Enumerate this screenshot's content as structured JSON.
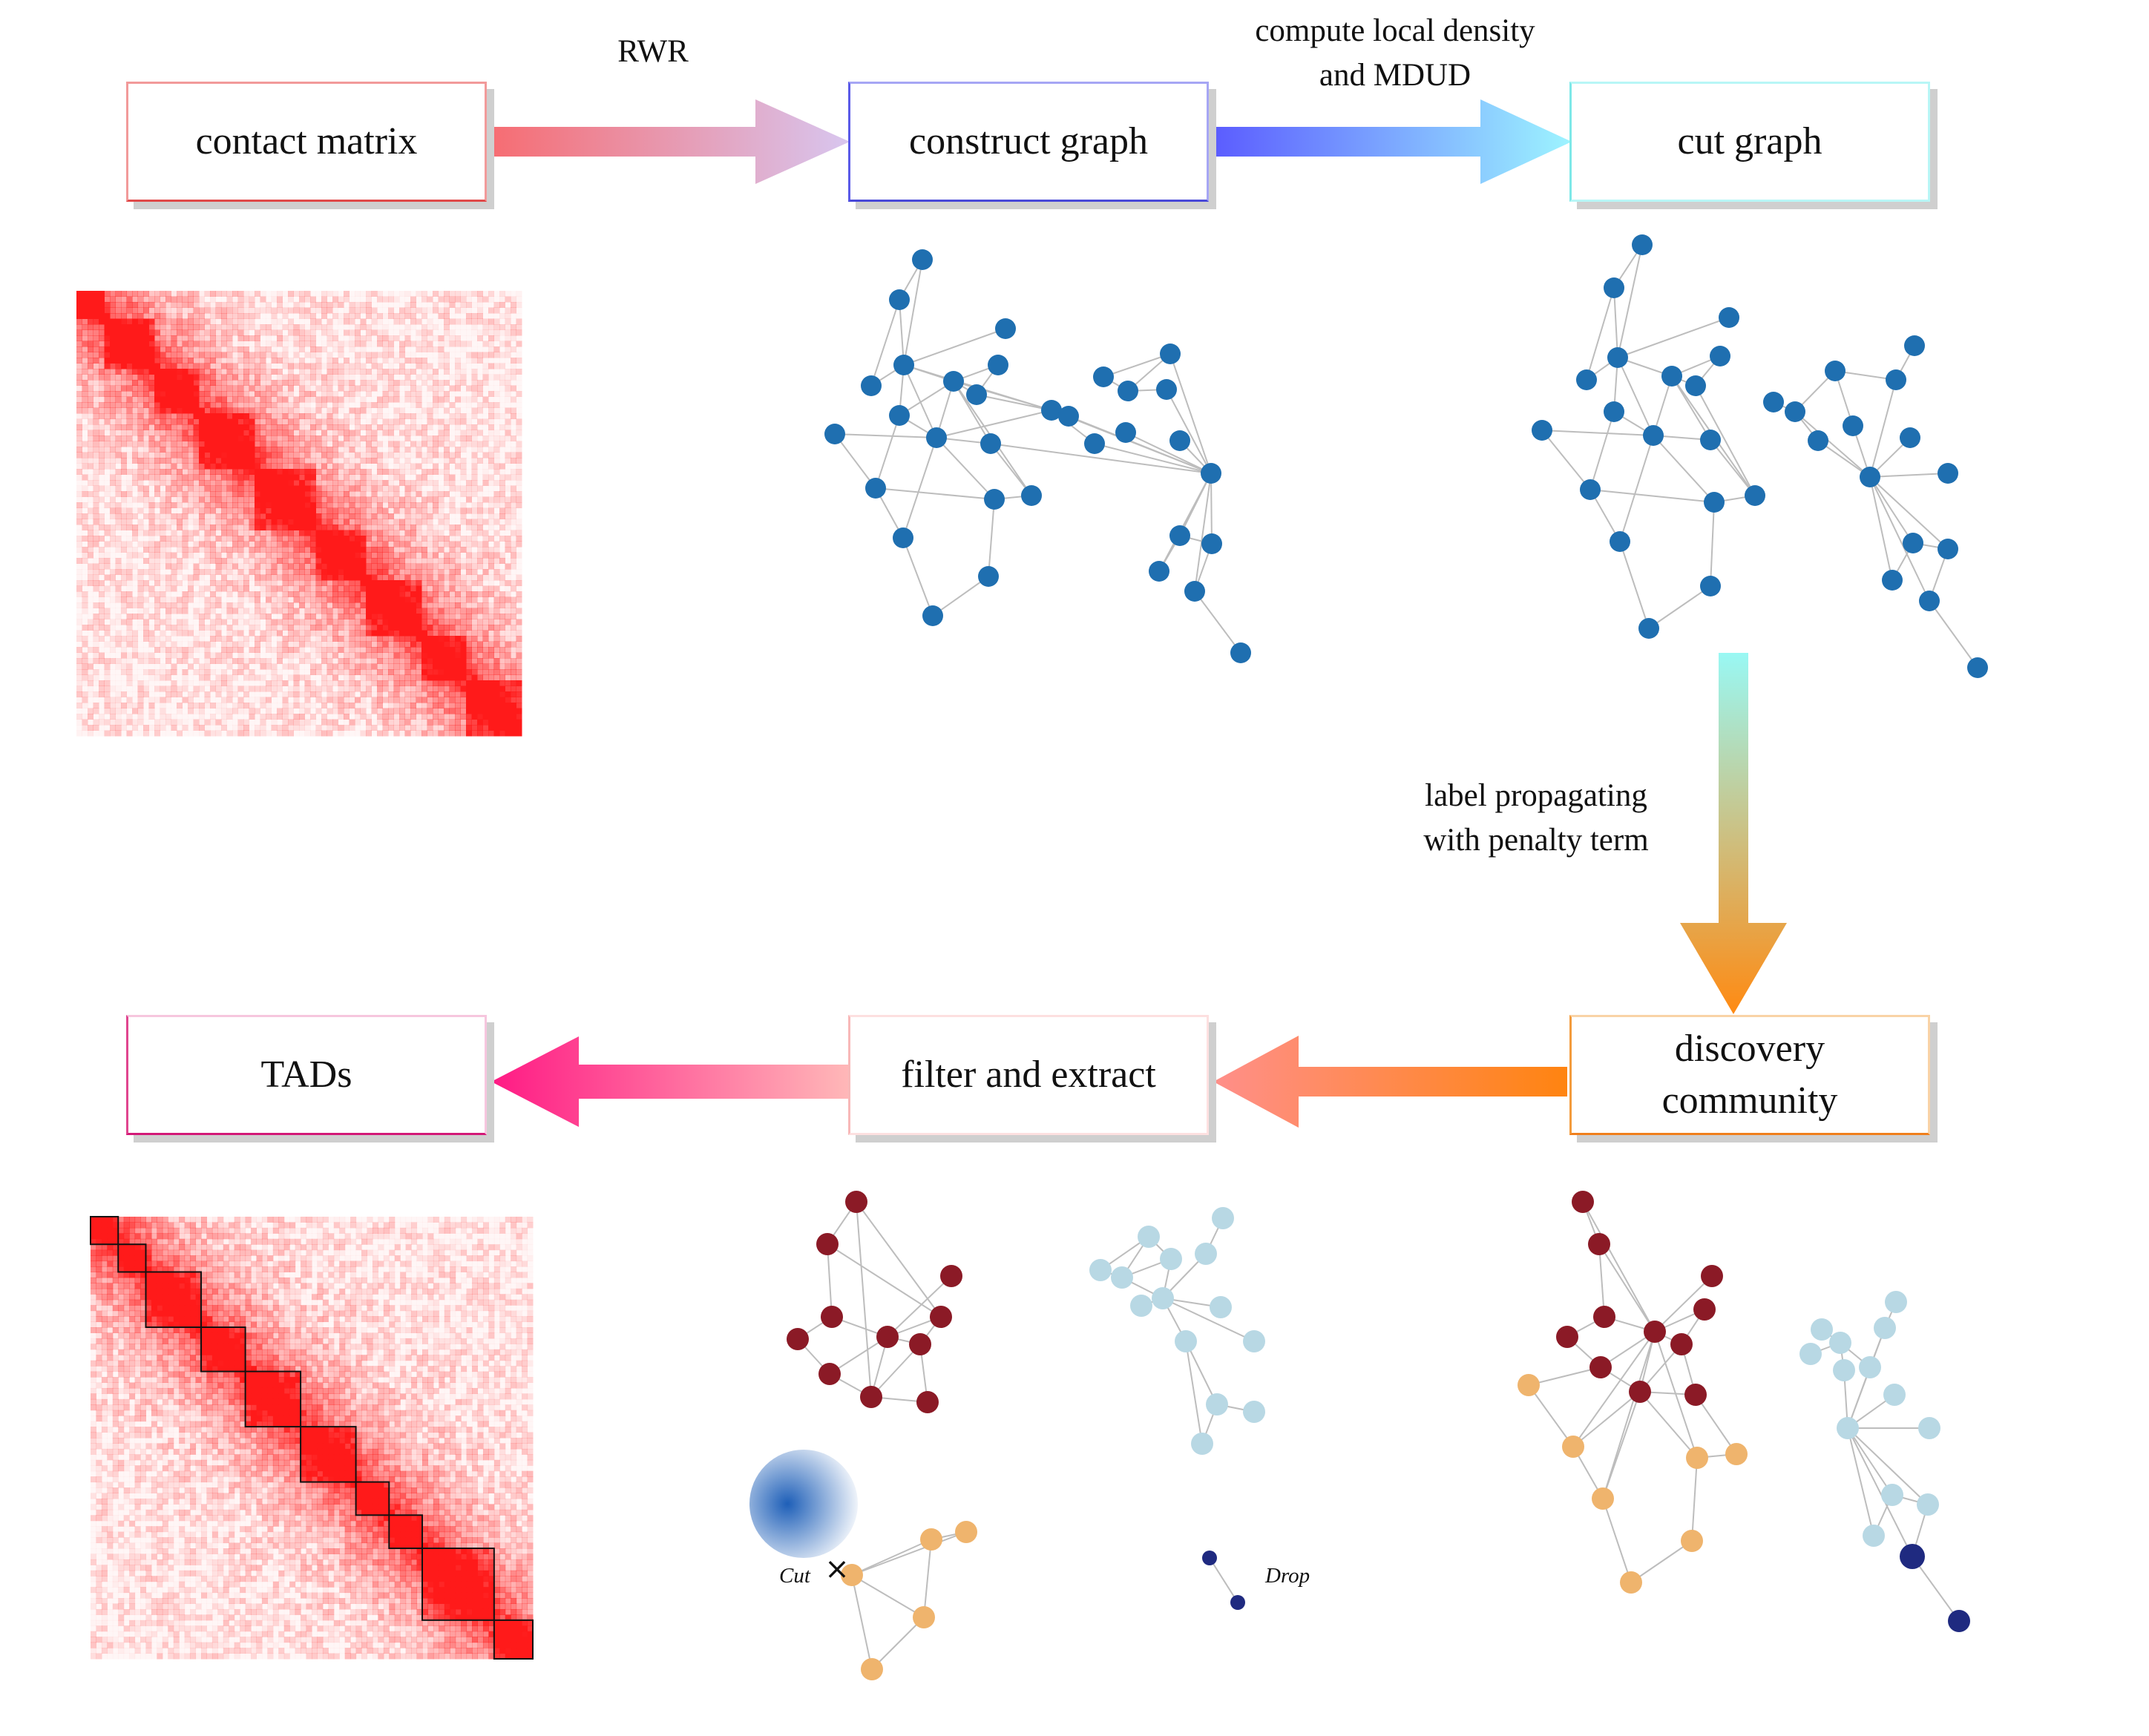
{
  "boxes": {
    "contact_matrix": "contact matrix",
    "construct_graph": "construct graph",
    "cut_graph": "cut graph",
    "discovery_community_line1": "discovery",
    "discovery_community_line2": "community",
    "filter_and_extract": "filter and extract",
    "tads": "TADs"
  },
  "arrow_labels": {
    "rwr": "RWR",
    "density_line1": "compute local density",
    "density_line2": "and MDUD",
    "label_prop_line1": "label propagating",
    "label_prop_line2": "with penalty term"
  },
  "annotations": {
    "cut": "Cut",
    "drop": "Drop"
  },
  "colors": {
    "node_blue": "#1f6fb0",
    "community_red": "#8b1a26",
    "community_orange": "#efb46d",
    "community_lightblue": "#b8d8e4",
    "community_navy": "#1f2a80",
    "heatmap_red": "#ff1a1a"
  }
}
